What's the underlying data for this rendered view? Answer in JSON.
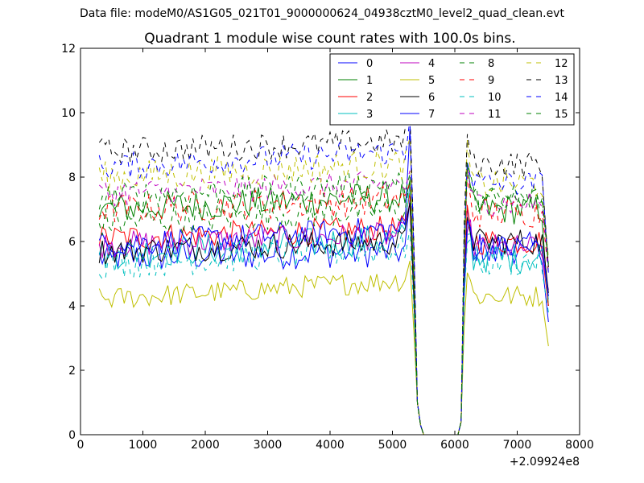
{
  "figure": {
    "supertitle": "Data file: modeM0/AS1G05_021T01_9000000624_04938cztM0_level2_quad_clean.evt"
  },
  "chart_data": {
    "type": "line",
    "title": "Quadrant 1 module wise count rates with 100.0s bins.",
    "xlabel": "",
    "ylabel": "",
    "xlim": [
      0,
      8000
    ],
    "ylim": [
      0,
      12
    ],
    "x_offset_label": "+2.09924e8",
    "x_ticks": [
      0,
      1000,
      2000,
      3000,
      4000,
      5000,
      6000,
      7000,
      8000
    ],
    "y_ticks": [
      0,
      2,
      4,
      6,
      8,
      10,
      12
    ],
    "grid": false,
    "legend": {
      "placement": "top-right",
      "columns": 4
    },
    "segment1": {
      "x_start": 300,
      "x_end": 5200,
      "step": 50
    },
    "drop": {
      "x": [
        5280,
        5350,
        5400,
        5450
      ]
    },
    "gap": {
      "x_start": 5500,
      "x_end": 6050
    },
    "segment2": {
      "x_start": 6200,
      "x_end": 7400,
      "step": 50
    },
    "tail_x": 7500,
    "series": [
      {
        "name": "0",
        "color": "#0000ff",
        "dash": "solid",
        "base": 5.5,
        "amp": 0.35,
        "rise": 0.2,
        "peak": 7.3,
        "post": 5.8,
        "end": 3.5
      },
      {
        "name": "1",
        "color": "#008000",
        "dash": "solid",
        "base": 7.0,
        "amp": 0.35,
        "rise": 0.4,
        "peak": 7.9,
        "post": 7.0,
        "end": 4.0
      },
      {
        "name": "2",
        "color": "#ff0000",
        "dash": "solid",
        "base": 6.1,
        "amp": 0.3,
        "rise": 0.3,
        "peak": 7.5,
        "post": 6.0,
        "end": 4.0
      },
      {
        "name": "3",
        "color": "#00bfbf",
        "dash": "solid",
        "base": 5.6,
        "amp": 0.35,
        "rise": 0.5,
        "peak": 7.8,
        "post": 5.5,
        "end": 4.2
      },
      {
        "name": "4",
        "color": "#bf00bf",
        "dash": "solid",
        "base": 5.9,
        "amp": 0.3,
        "rise": 0.3,
        "peak": 7.2,
        "post": 5.8,
        "end": 4.5
      },
      {
        "name": "5",
        "color": "#bfbf00",
        "dash": "solid",
        "base": 4.2,
        "amp": 0.25,
        "rise": 0.6,
        "peak": 5.4,
        "post": 4.3,
        "end": 2.75
      },
      {
        "name": "6",
        "color": "#000000",
        "dash": "solid",
        "base": 5.7,
        "amp": 0.3,
        "rise": 0.3,
        "peak": 7.2,
        "post": 6.0,
        "end": 4.4
      },
      {
        "name": "7",
        "color": "#0000ff",
        "dash": "solid",
        "base": 5.9,
        "amp": 0.3,
        "rise": 0.5,
        "peak": 9.5,
        "post": 5.8,
        "end": 4.3
      },
      {
        "name": "8",
        "color": "#008000",
        "dash": "dash",
        "base": 6.6,
        "amp": 0.35,
        "rise": 0.4,
        "peak": 7.9,
        "post": 7.3,
        "end": 5.5
      },
      {
        "name": "9",
        "color": "#ff0000",
        "dash": "dash",
        "base": 7.0,
        "amp": 0.35,
        "rise": 0.3,
        "peak": 7.8,
        "post": 6.9,
        "end": 5.0
      },
      {
        "name": "10",
        "color": "#00bfbf",
        "dash": "dash",
        "base": 5.3,
        "amp": 0.35,
        "rise": 0.5,
        "peak": 6.4,
        "post": 5.4,
        "end": 3.8
      },
      {
        "name": "11",
        "color": "#bf00bf",
        "dash": "dash",
        "base": 7.5,
        "amp": 0.3,
        "rise": 0.3,
        "peak": 8.2,
        "post": 7.2,
        "end": 5.3
      },
      {
        "name": "12",
        "color": "#bfbf00",
        "dash": "dash",
        "base": 8.0,
        "amp": 0.35,
        "rise": 0.4,
        "peak": 9.2,
        "post": 7.8,
        "end": 5.5
      },
      {
        "name": "13",
        "color": "#000000",
        "dash": "dash",
        "base": 8.8,
        "amp": 0.3,
        "rise": 0.3,
        "peak": 10.0,
        "post": 8.4,
        "end": 5.2
      },
      {
        "name": "14",
        "color": "#0000ff",
        "dash": "dash",
        "base": 8.3,
        "amp": 0.3,
        "rise": 0.5,
        "peak": 9.8,
        "post": 7.8,
        "end": 5.0
      },
      {
        "name": "15",
        "color": "#008000",
        "dash": "dash",
        "base": 7.4,
        "amp": 0.3,
        "rise": 0.4,
        "peak": 8.1,
        "post": 7.3,
        "end": 5.3
      }
    ]
  }
}
